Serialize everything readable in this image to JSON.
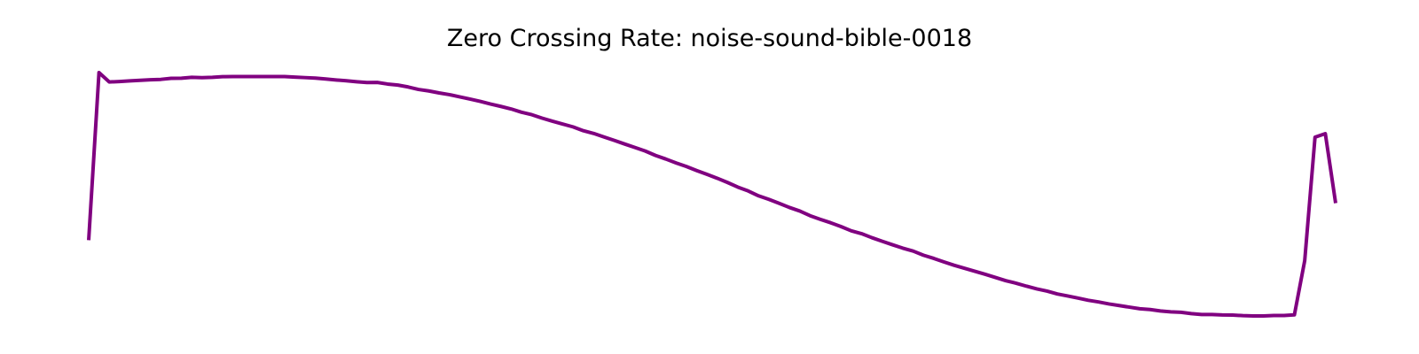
{
  "chart_data": {
    "type": "line",
    "title": "Zero Crossing Rate: noise-sound-bible-0018",
    "xlabel": "",
    "ylabel": "",
    "axes_visible": false,
    "grid": false,
    "legend": "none",
    "colors": {
      "line": "#800080"
    },
    "series": [
      {
        "values": [
          0.3213,
          0.9836,
          0.9465,
          0.9483,
          0.9507,
          0.9531,
          0.9552,
          0.9567,
          0.9609,
          0.9612,
          0.9647,
          0.9633,
          0.9648,
          0.9673,
          0.9679,
          0.9679,
          0.9679,
          0.9679,
          0.9679,
          0.9679,
          0.9658,
          0.9637,
          0.9617,
          0.9583,
          0.9544,
          0.9512,
          0.9474,
          0.9444,
          0.9448,
          0.9383,
          0.9343,
          0.9267,
          0.9169,
          0.911,
          0.9032,
          0.8964,
          0.8878,
          0.8788,
          0.8698,
          0.8592,
          0.8498,
          0.8397,
          0.8268,
          0.8172,
          0.8035,
          0.7914,
          0.7803,
          0.769,
          0.7539,
          0.7431,
          0.7291,
          0.7156,
          0.7014,
          0.6878,
          0.6737,
          0.6563,
          0.642,
          0.6264,
          0.6124,
          0.5965,
          0.5815,
          0.5659,
          0.5491,
          0.5309,
          0.5158,
          0.4966,
          0.4826,
          0.467,
          0.4506,
          0.4366,
          0.4181,
          0.4037,
          0.3902,
          0.3752,
          0.3584,
          0.3471,
          0.3312,
          0.3172,
          0.3033,
          0.2899,
          0.2784,
          0.2619,
          0.2494,
          0.2353,
          0.222,
          0.2103,
          0.1983,
          0.1864,
          0.1738,
          0.1611,
          0.1512,
          0.1396,
          0.129,
          0.1201,
          0.1088,
          0.1009,
          0.0925,
          0.0838,
          0.0772,
          0.0694,
          0.0632,
          0.0567,
          0.0505,
          0.0473,
          0.0417,
          0.0381,
          0.0363,
          0.0311,
          0.0276,
          0.0276,
          0.0258,
          0.0255,
          0.0232,
          0.022,
          0.022,
          0.0237,
          0.0237,
          0.0264,
          0.2405,
          0.7284,
          0.7422,
          0.4677
        ]
      }
    ]
  }
}
